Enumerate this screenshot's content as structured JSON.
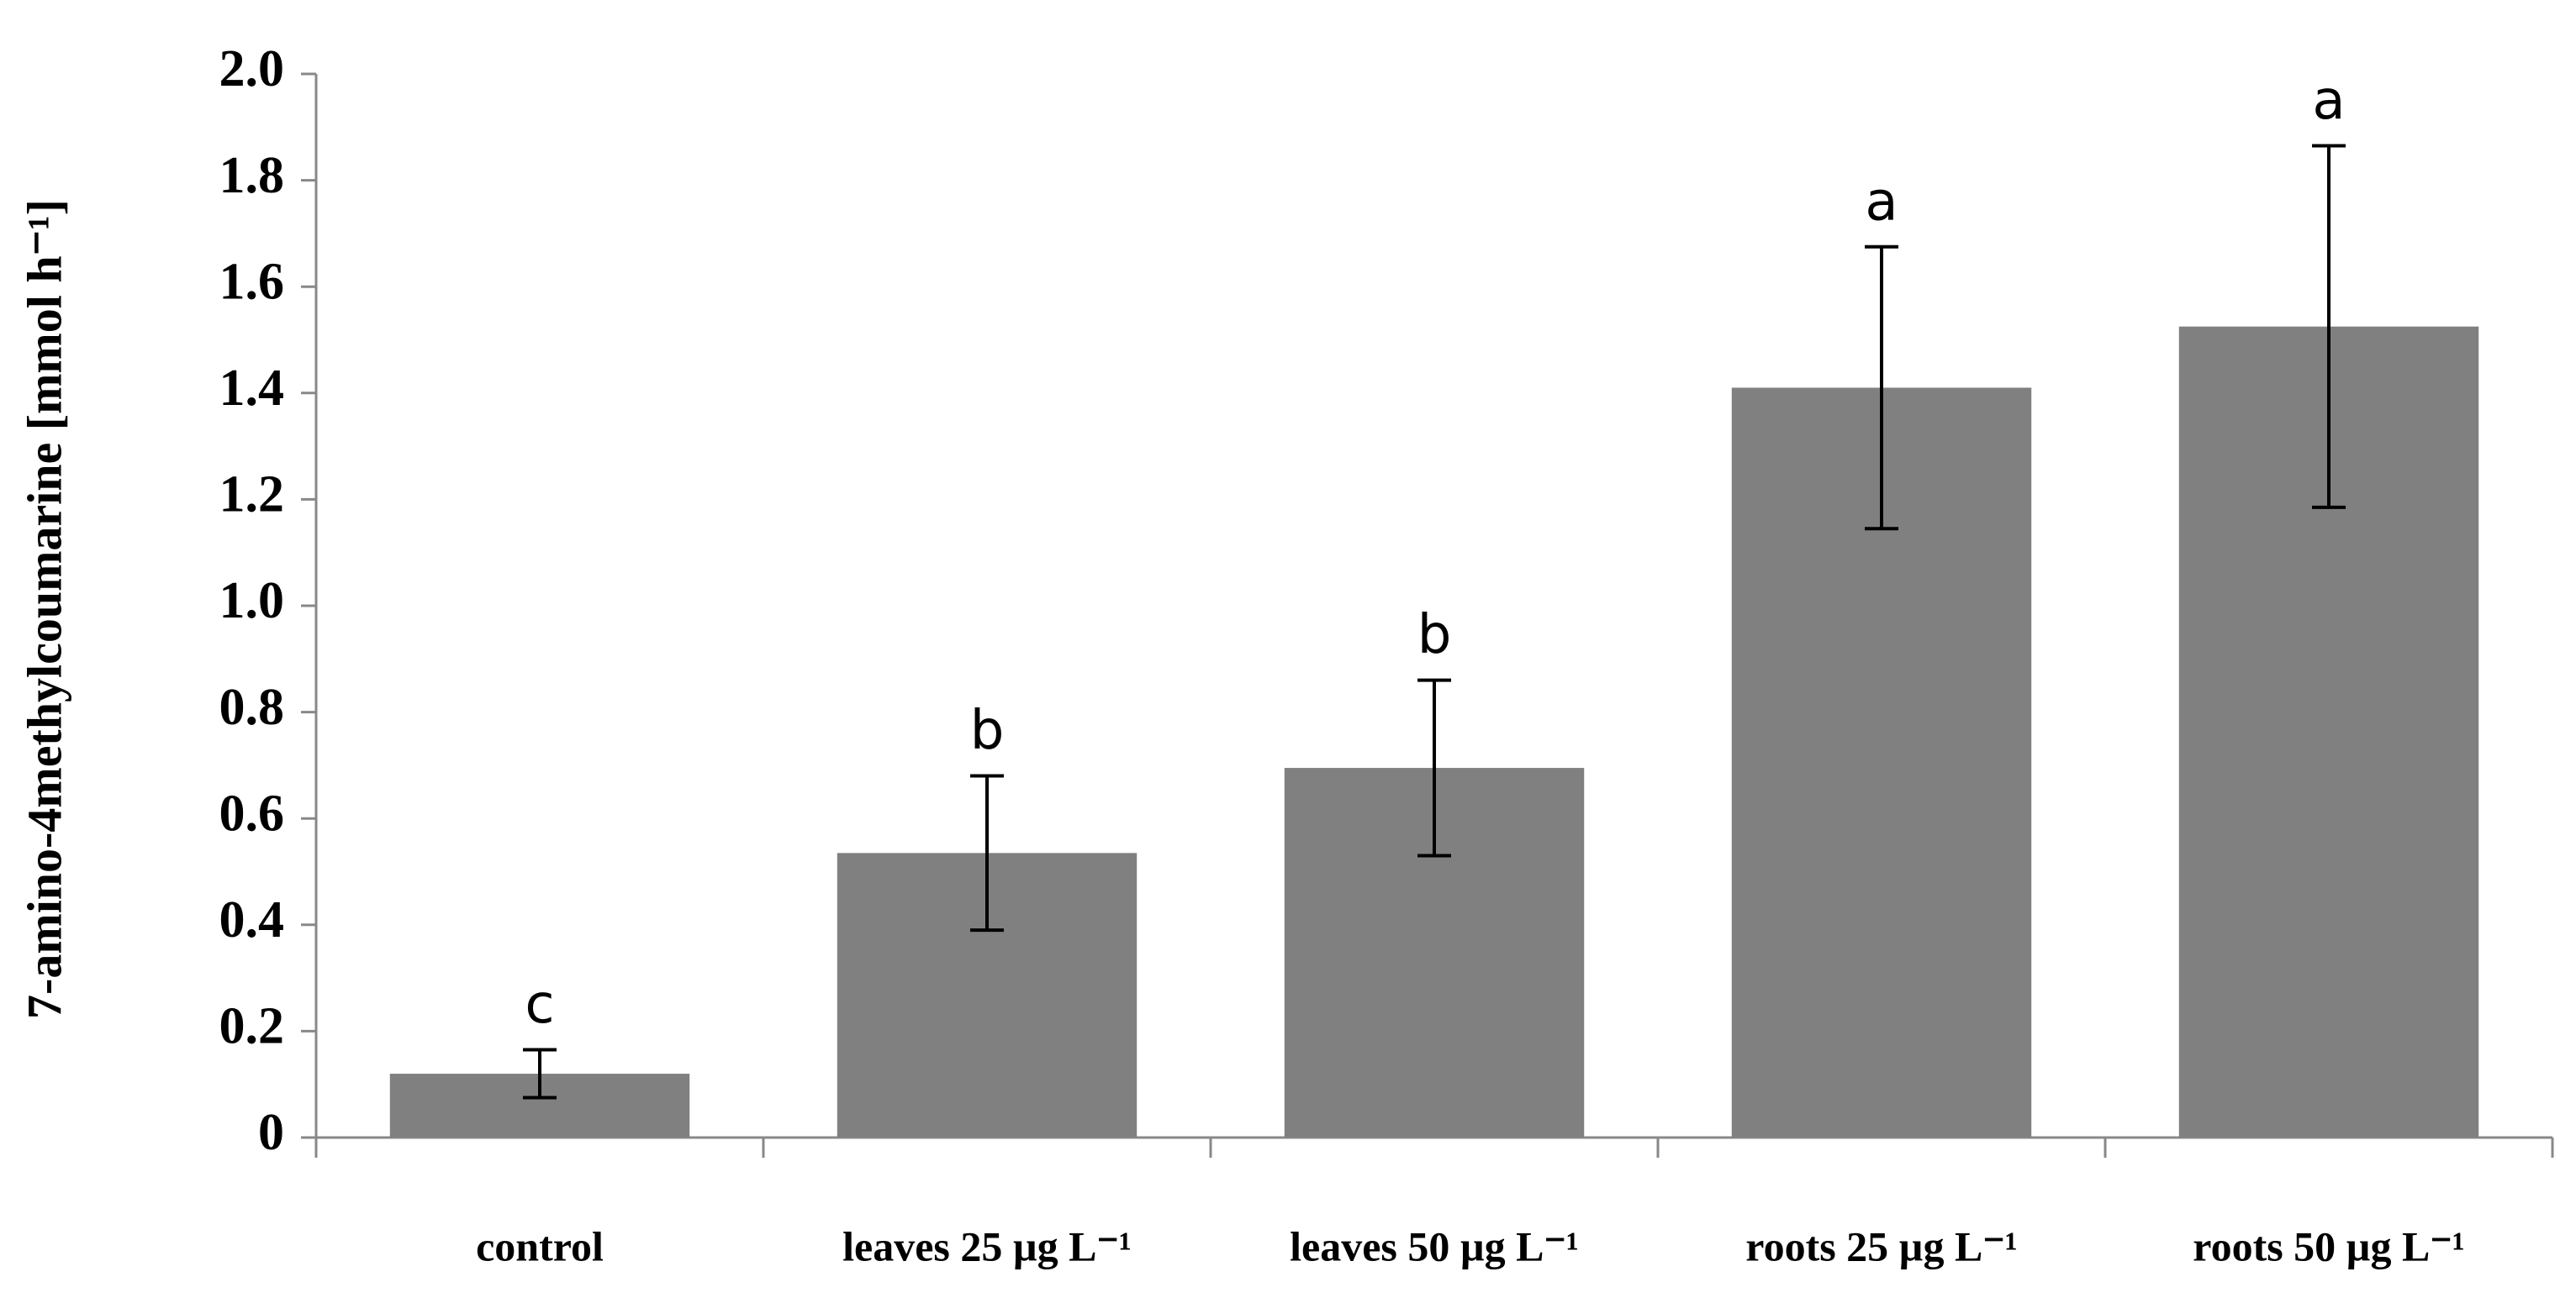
{
  "chart_data": {
    "type": "bar",
    "y_label": "7-amino-4methylcoumarine [mmol h⁻¹]",
    "categories": [
      "control",
      "leaves 25 µg L⁻¹",
      "leaves 50 µg L⁻¹",
      "roots 25 µg L⁻¹",
      "roots 50 µg L⁻¹"
    ],
    "values": [
      0.12,
      0.535,
      0.695,
      1.41,
      1.525
    ],
    "errors": [
      0.045,
      0.145,
      0.165,
      0.265,
      0.34
    ],
    "letters": [
      "c",
      "b",
      "b",
      "a",
      "a"
    ],
    "color": "#808080",
    "ylim": [
      0,
      2
    ],
    "yticks": [
      0,
      0.2,
      0.4,
      0.6,
      0.8,
      {
        "value": 1,
        "label": "1.0"
      },
      1.2,
      1.4,
      1.6,
      1.8,
      {
        "value": 2,
        "label": "2.0"
      }
    ]
  }
}
